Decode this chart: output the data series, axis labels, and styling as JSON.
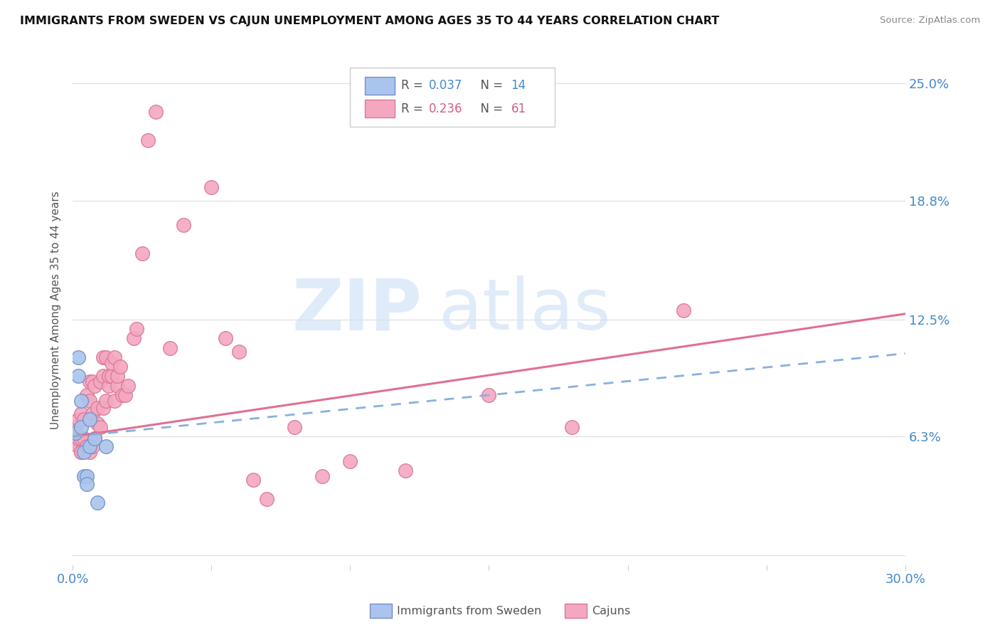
{
  "title": "IMMIGRANTS FROM SWEDEN VS CAJUN UNEMPLOYMENT AMONG AGES 35 TO 44 YEARS CORRELATION CHART",
  "source": "Source: ZipAtlas.com",
  "ylabel": "Unemployment Among Ages 35 to 44 years",
  "xmin": 0.0,
  "xmax": 0.3,
  "ymin": -0.005,
  "ymax": 0.265,
  "blue_color": "#aac4ed",
  "pink_color": "#f4a8c0",
  "blue_edge": "#7090c8",
  "pink_edge": "#d87898",
  "sweden_x": [
    0.001,
    0.002,
    0.002,
    0.003,
    0.003,
    0.004,
    0.004,
    0.005,
    0.005,
    0.006,
    0.006,
    0.008,
    0.009,
    0.012
  ],
  "sweden_y": [
    0.065,
    0.095,
    0.105,
    0.082,
    0.068,
    0.055,
    0.042,
    0.042,
    0.038,
    0.072,
    0.058,
    0.062,
    0.028,
    0.058
  ],
  "cajun_x": [
    0.001,
    0.001,
    0.002,
    0.002,
    0.002,
    0.003,
    0.003,
    0.003,
    0.003,
    0.004,
    0.004,
    0.005,
    0.005,
    0.006,
    0.006,
    0.006,
    0.007,
    0.007,
    0.007,
    0.008,
    0.008,
    0.009,
    0.009,
    0.01,
    0.01,
    0.011,
    0.011,
    0.011,
    0.012,
    0.012,
    0.013,
    0.013,
    0.014,
    0.014,
    0.015,
    0.015,
    0.016,
    0.016,
    0.017,
    0.018,
    0.019,
    0.02,
    0.022,
    0.023,
    0.025,
    0.027,
    0.03,
    0.035,
    0.04,
    0.05,
    0.055,
    0.06,
    0.065,
    0.07,
    0.08,
    0.09,
    0.1,
    0.12,
    0.15,
    0.18,
    0.22
  ],
  "cajun_y": [
    0.06,
    0.068,
    0.058,
    0.062,
    0.072,
    0.055,
    0.062,
    0.075,
    0.055,
    0.062,
    0.072,
    0.058,
    0.085,
    0.055,
    0.082,
    0.092,
    0.058,
    0.075,
    0.092,
    0.062,
    0.09,
    0.07,
    0.078,
    0.068,
    0.092,
    0.095,
    0.078,
    0.105,
    0.082,
    0.105,
    0.09,
    0.095,
    0.095,
    0.102,
    0.082,
    0.105,
    0.09,
    0.095,
    0.1,
    0.085,
    0.085,
    0.09,
    0.115,
    0.12,
    0.16,
    0.22,
    0.235,
    0.11,
    0.175,
    0.195,
    0.115,
    0.108,
    0.04,
    0.03,
    0.068,
    0.042,
    0.05,
    0.045,
    0.085,
    0.068,
    0.13
  ],
  "cajun_trend_x0": 0.0,
  "cajun_trend_y0": 0.063,
  "cajun_trend_x1": 0.3,
  "cajun_trend_y1": 0.128,
  "sweden_trend_x0": 0.0,
  "sweden_trend_y0": 0.063,
  "sweden_trend_x1": 0.3,
  "sweden_trend_y1": 0.107,
  "ytick_positions": [
    0.0,
    0.063,
    0.125,
    0.188,
    0.25
  ],
  "ytick_labels_right": [
    "",
    "6.3%",
    "12.5%",
    "18.8%",
    "25.0%"
  ],
  "xticks": [
    0.0,
    0.05,
    0.1,
    0.15,
    0.2,
    0.25,
    0.3
  ],
  "legend_blue_text": "R = 0.037   N = 14",
  "legend_pink_text": "R = 0.236   N = 61",
  "bottom_label_sweden": "Immigrants from Sweden",
  "bottom_label_cajun": "Cajuns"
}
